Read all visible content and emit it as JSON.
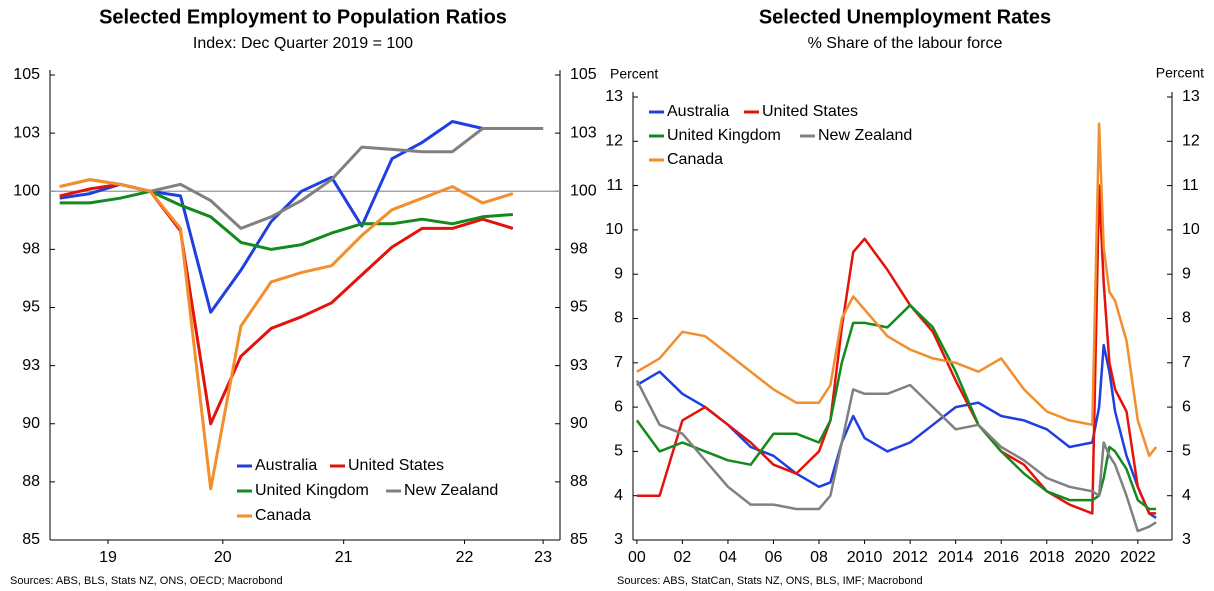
{
  "chart_data": [
    {
      "type": "line",
      "title": "Selected Employment to Population Ratios",
      "subtitle": "Index: Dec Quarter 2019 = 100",
      "source": "Sources: ABS, BLS, Stats NZ, ONS, OECD; Macrobond",
      "x": [
        2019,
        2019.25,
        2019.5,
        2019.75,
        2020,
        2020.25,
        2020.5,
        2020.75,
        2021,
        2021.25,
        2021.5,
        2021.75,
        2022,
        2022.25,
        2022.5,
        2022.75,
        2023
      ],
      "xlim": [
        2018.92,
        2023.14
      ],
      "xticks": [
        {
          "value": 2019.4,
          "label": "19"
        },
        {
          "value": 2020.35,
          "label": "20"
        },
        {
          "value": 2021.35,
          "label": "21"
        },
        {
          "value": 2022.35,
          "label": "22"
        },
        {
          "value": 2023,
          "label": "23"
        }
      ],
      "ylim": [
        85,
        105
      ],
      "yticks": [
        85,
        {
          "value": 87.5,
          "label": "88"
        },
        90,
        {
          "value": 92.5,
          "label": "93"
        },
        95,
        {
          "value": 97.5,
          "label": "98"
        },
        100,
        {
          "value": 102.5,
          "label": "103"
        },
        105
      ],
      "hline": 100,
      "series": [
        {
          "name": "Australia",
          "color": "#1f3fe0",
          "values": [
            99.7,
            99.9,
            100.3,
            100,
            99.8,
            94.8,
            96.6,
            98.7,
            100,
            100.6,
            98.5,
            101.4,
            102.1,
            103.0,
            102.7,
            102.7,
            102.7
          ]
        },
        {
          "name": "United States",
          "color": "#e3120b",
          "values": [
            99.8,
            100.1,
            100.3,
            100,
            98.3,
            90.0,
            92.9,
            94.1,
            94.6,
            95.2,
            96.4,
            97.6,
            98.4,
            98.4,
            98.8,
            98.4,
            null
          ]
        },
        {
          "name": "United Kingdom",
          "color": "#138a1d",
          "values": [
            99.5,
            99.5,
            99.7,
            100,
            99.4,
            98.9,
            97.8,
            97.5,
            97.7,
            98.2,
            98.6,
            98.6,
            98.8,
            98.6,
            98.9,
            99.0,
            null
          ]
        },
        {
          "name": "New Zealand",
          "color": "#808080",
          "values": [
            100.2,
            100.5,
            100.3,
            100,
            100.3,
            99.6,
            98.4,
            98.9,
            99.6,
            100.5,
            101.9,
            101.8,
            101.7,
            101.7,
            102.7,
            102.7,
            102.7
          ]
        },
        {
          "name": "Canada",
          "color": "#f28e2b",
          "values": [
            100.2,
            100.5,
            100.3,
            100,
            98.4,
            87.2,
            94.2,
            96.1,
            96.5,
            96.8,
            98.1,
            99.2,
            99.7,
            100.2,
            99.5,
            99.9,
            null
          ]
        }
      ]
    },
    {
      "type": "line",
      "title": "Selected Unemployment Rates",
      "subtitle": "% Share of the labour force",
      "source": "Sources: ABS, StatCan, Stats NZ, ONS, BLS, IMF; Macrobond",
      "y_label": "Percent",
      "x": [
        2000,
        2001,
        2002,
        2003,
        2004,
        2005,
        2006,
        2007,
        2008,
        2008.5,
        2009,
        2009.5,
        2010,
        2011,
        2012,
        2013,
        2014,
        2015,
        2016,
        2017,
        2018,
        2019,
        2020,
        2020.3,
        2020.5,
        2020.75,
        2021,
        2021.5,
        2022,
        2022.5,
        2022.8
      ],
      "xlim": [
        1999.83,
        2023.5
      ],
      "xticks": [
        {
          "value": 2000,
          "label": "00"
        },
        {
          "value": 2002,
          "label": "02"
        },
        {
          "value": 2004,
          "label": "04"
        },
        {
          "value": 2006,
          "label": "06"
        },
        {
          "value": 2008,
          "label": "08"
        },
        2010,
        2012,
        2014,
        2016,
        2018,
        2020,
        2022
      ],
      "ylim": [
        3,
        13
      ],
      "yticks": [
        3,
        4,
        5,
        6,
        7,
        8,
        9,
        10,
        11,
        12,
        13
      ],
      "series": [
        {
          "name": "Australia",
          "color": "#1f3fe0",
          "values": [
            6.5,
            6.8,
            6.3,
            6.0,
            5.6,
            5.1,
            4.9,
            4.5,
            4.2,
            4.3,
            5.2,
            5.8,
            5.3,
            5.0,
            5.2,
            5.6,
            6.0,
            6.1,
            5.8,
            5.7,
            5.5,
            5.1,
            5.2,
            6.0,
            7.4,
            6.8,
            5.9,
            4.9,
            4.2,
            3.6,
            3.5
          ]
        },
        {
          "name": "United States",
          "color": "#e3120b",
          "values": [
            4.0,
            4.0,
            5.7,
            6.0,
            5.6,
            5.2,
            4.7,
            4.5,
            5.0,
            5.7,
            7.8,
            9.5,
            9.8,
            9.1,
            8.3,
            7.7,
            6.6,
            5.6,
            5.0,
            4.7,
            4.1,
            3.8,
            3.6,
            11.0,
            8.8,
            7.0,
            6.4,
            5.9,
            4.2,
            3.6,
            3.6
          ]
        },
        {
          "name": "United Kingdom",
          "color": "#138a1d",
          "values": [
            5.7,
            5.0,
            5.2,
            5.0,
            4.8,
            4.7,
            5.4,
            5.4,
            5.2,
            5.7,
            7.0,
            7.9,
            7.9,
            7.8,
            8.3,
            7.8,
            6.8,
            5.6,
            5.0,
            4.5,
            4.1,
            3.9,
            3.9,
            4.0,
            4.4,
            5.1,
            5.0,
            4.6,
            3.9,
            3.7,
            3.7
          ]
        },
        {
          "name": "New Zealand",
          "color": "#808080",
          "values": [
            6.6,
            5.6,
            5.4,
            4.8,
            4.2,
            3.8,
            3.8,
            3.7,
            3.7,
            4.0,
            5.2,
            6.4,
            6.3,
            6.3,
            6.5,
            6.0,
            5.5,
            5.6,
            5.1,
            4.8,
            4.4,
            4.2,
            4.1,
            4.0,
            5.2,
            4.9,
            4.7,
            4.0,
            3.2,
            3.3,
            3.4
          ]
        },
        {
          "name": "Canada",
          "color": "#f28e2b",
          "values": [
            6.8,
            7.1,
            7.7,
            7.6,
            7.2,
            6.8,
            6.4,
            6.1,
            6.1,
            6.5,
            8.0,
            8.5,
            8.2,
            7.6,
            7.3,
            7.1,
            7.0,
            6.8,
            7.1,
            6.4,
            5.9,
            5.7,
            5.6,
            12.4,
            9.6,
            8.6,
            8.4,
            7.5,
            5.7,
            4.9,
            5.1
          ]
        }
      ]
    }
  ]
}
